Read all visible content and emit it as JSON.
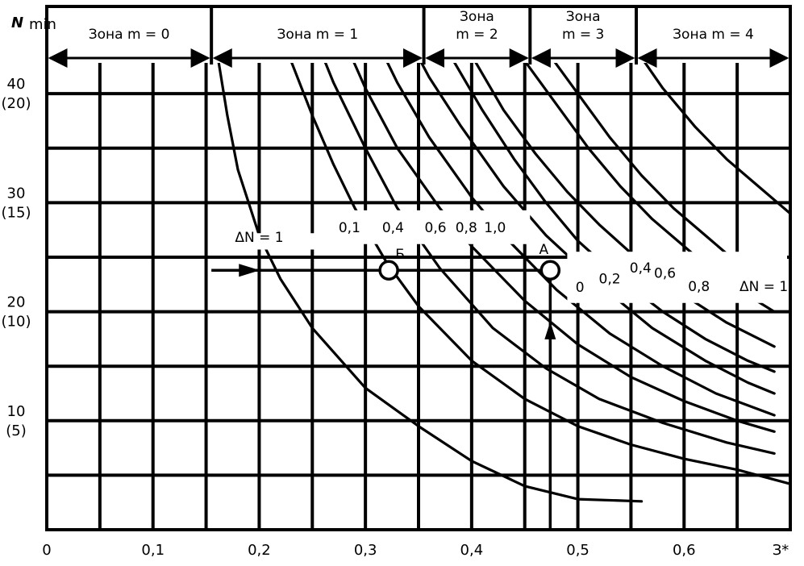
{
  "chart_data": {
    "type": "line",
    "xlim": [
      0,
      0.7
    ],
    "ylim": [
      0,
      48
    ],
    "grid": true,
    "x_ticks": [
      {
        "value": 0,
        "label": "0"
      },
      {
        "value": 0.1,
        "label": "0,1"
      },
      {
        "value": 0.2,
        "label": "0,2"
      },
      {
        "value": 0.3,
        "label": "0,3"
      },
      {
        "value": 0.4,
        "label": "0,4"
      },
      {
        "value": 0.5,
        "label": "0,5"
      },
      {
        "value": 0.6,
        "label": "0,6"
      },
      {
        "value": 0.7,
        "label": "З*"
      }
    ],
    "y_ticks": [
      {
        "value": 40,
        "label": "40",
        "sub": "(20)"
      },
      {
        "value": 30,
        "label": "30",
        "sub": "(15)"
      },
      {
        "value": 20,
        "label": "20",
        "sub": "(10)"
      },
      {
        "value": 10,
        "label": "10",
        "sub": "(5)"
      }
    ],
    "ylabel": "N",
    "ylabel_sub": "min",
    "zones": [
      {
        "label": "Зона  m  =  0",
        "line2": "",
        "x0": 0.0,
        "x1": 0.155
      },
      {
        "label": "Зона  m  =  1",
        "line2": "",
        "x0": 0.155,
        "x1": 0.355
      },
      {
        "label": "Зона",
        "line2": "m  =  2",
        "x0": 0.355,
        "x1": 0.455
      },
      {
        "label": "Зона",
        "line2": "m  =  3",
        "x0": 0.455,
        "x1": 0.555
      },
      {
        "label": "Зона  m  =  4",
        "line2": "",
        "x0": 0.555,
        "x1": 0.7
      }
    ],
    "series": [
      {
        "name": "ΔN = 1",
        "label_x": 0.2,
        "label_y": 26.4,
        "points": [
          [
            0.155,
            48
          ],
          [
            0.16,
            44
          ],
          [
            0.17,
            38
          ],
          [
            0.18,
            33
          ],
          [
            0.19,
            30
          ],
          [
            0.2,
            27
          ],
          [
            0.22,
            23
          ],
          [
            0.25,
            18.5
          ],
          [
            0.3,
            13
          ],
          [
            0.35,
            9.5
          ],
          [
            0.4,
            6.3
          ],
          [
            0.45,
            4
          ],
          [
            0.5,
            2.8
          ],
          [
            0.56,
            2.6
          ]
        ]
      },
      {
        "name": "0,1",
        "label_x": 0.285,
        "label_y": 27.3,
        "points": [
          [
            0.23,
            43
          ],
          [
            0.25,
            38
          ],
          [
            0.27,
            33.5
          ],
          [
            0.29,
            29.5
          ],
          [
            0.32,
            24.5
          ],
          [
            0.35,
            20.5
          ],
          [
            0.4,
            15.5
          ],
          [
            0.45,
            12
          ],
          [
            0.5,
            9.5
          ],
          [
            0.55,
            7.8
          ],
          [
            0.6,
            6.5
          ],
          [
            0.65,
            5.5
          ],
          [
            0.7,
            4.2
          ]
        ]
      },
      {
        "name": "0,4",
        "label_x": 0.326,
        "label_y": 27.3,
        "points": [
          [
            0.245,
            47
          ],
          [
            0.27,
            41
          ],
          [
            0.3,
            35
          ],
          [
            0.33,
            29.5
          ],
          [
            0.37,
            24
          ],
          [
            0.42,
            18.5
          ],
          [
            0.47,
            14.8
          ],
          [
            0.52,
            12
          ],
          [
            0.58,
            9.8
          ],
          [
            0.64,
            8
          ],
          [
            0.685,
            7
          ]
        ]
      },
      {
        "name": "0,6",
        "label_x": 0.366,
        "label_y": 27.3,
        "points": [
          [
            0.275,
            46
          ],
          [
            0.3,
            40.5
          ],
          [
            0.33,
            35
          ],
          [
            0.37,
            29.5
          ],
          [
            0.4,
            26
          ],
          [
            0.45,
            21
          ],
          [
            0.5,
            17
          ],
          [
            0.55,
            14
          ],
          [
            0.6,
            11.8
          ],
          [
            0.65,
            10
          ],
          [
            0.685,
            9
          ]
        ]
      },
      {
        "name": "0,8",
        "label_x": 0.395,
        "label_y": 27.3,
        "points": [
          [
            0.3,
            47
          ],
          [
            0.33,
            41
          ],
          [
            0.36,
            36
          ],
          [
            0.4,
            30.5
          ],
          [
            0.43,
            27
          ],
          [
            0.48,
            22
          ],
          [
            0.53,
            18
          ],
          [
            0.58,
            15
          ],
          [
            0.63,
            12.5
          ],
          [
            0.685,
            10.5
          ]
        ]
      },
      {
        "name": "1,0",
        "label_x": 0.422,
        "label_y": 27.3,
        "points": [
          [
            0.33,
            47
          ],
          [
            0.36,
            41.5
          ],
          [
            0.39,
            37
          ],
          [
            0.43,
            31.5
          ],
          [
            0.47,
            27
          ],
          [
            0.52,
            22.5
          ],
          [
            0.57,
            18.5
          ],
          [
            0.62,
            15.5
          ],
          [
            0.66,
            13.5
          ],
          [
            0.685,
            12.5
          ]
        ]
      },
      {
        "name": "0",
        "label_x": 0.502,
        "label_y": 21.8,
        "points": [
          [
            0.355,
            48
          ],
          [
            0.38,
            43.5
          ],
          [
            0.41,
            38.5
          ],
          [
            0.44,
            34
          ],
          [
            0.47,
            30
          ],
          [
            0.5,
            26.5
          ],
          [
            0.54,
            23
          ],
          [
            0.58,
            20
          ],
          [
            0.62,
            17.5
          ],
          [
            0.66,
            15.5
          ],
          [
            0.685,
            14.5
          ]
        ]
      },
      {
        "name": "0,2",
        "label_x": 0.53,
        "label_y": 22.6,
        "points": [
          [
            0.375,
            48
          ],
          [
            0.4,
            43.5
          ],
          [
            0.43,
            38.5
          ],
          [
            0.46,
            34.5
          ],
          [
            0.49,
            31
          ],
          [
            0.52,
            28
          ],
          [
            0.56,
            24.5
          ],
          [
            0.6,
            21.5
          ],
          [
            0.64,
            19
          ],
          [
            0.685,
            16.8
          ]
        ]
      },
      {
        "name": "0,4",
        "label_x": 0.559,
        "label_y": 23.6,
        "points": [
          [
            0.42,
            48
          ],
          [
            0.45,
            43
          ],
          [
            0.48,
            39
          ],
          [
            0.51,
            35
          ],
          [
            0.54,
            31.5
          ],
          [
            0.57,
            28.5
          ],
          [
            0.6,
            26
          ],
          [
            0.63,
            23.5
          ],
          [
            0.66,
            21.5
          ],
          [
            0.685,
            20
          ]
        ]
      },
      {
        "name": "0,6",
        "label_x": 0.582,
        "label_y": 23.1,
        "points": [
          [
            0.445,
            48
          ],
          [
            0.47,
            44
          ],
          [
            0.5,
            40
          ],
          [
            0.53,
            36
          ],
          [
            0.56,
            32.5
          ],
          [
            0.59,
            29.5
          ],
          [
            0.62,
            27
          ],
          [
            0.65,
            24.5
          ],
          [
            0.685,
            22
          ]
        ]
      },
      {
        "name": "0,8",
        "label_x": 0.614,
        "label_y": 21.9,
        "points": [
          [
            0.555,
            44
          ],
          [
            0.58,
            40.5
          ],
          [
            0.61,
            37
          ],
          [
            0.64,
            34
          ],
          [
            0.67,
            31.5
          ],
          [
            0.7,
            29
          ]
        ]
      }
    ],
    "extra_labels": [
      {
        "text": "ΔN = 1",
        "x": 0.675,
        "y": 21.9
      }
    ],
    "points": [
      {
        "name": "Б",
        "x": 0.322,
        "y": 23.8,
        "label_dx": 14,
        "label_dy": -14
      },
      {
        "name": "А",
        "x": 0.474,
        "y": 23.8,
        "label_dx": -8,
        "label_dy": -20
      }
    ],
    "reading_arrows": [
      {
        "x0": 0.155,
        "y0": 23.8,
        "x1": 0.322,
        "y1": 23.8,
        "head_at": 0.19
      },
      {
        "x0": 0.322,
        "y0": 23.8,
        "x1": 0.474,
        "y1": 23.8,
        "head_at": null
      },
      {
        "x0": 0.474,
        "y0": 0,
        "x1": 0.474,
        "y1": 23.8,
        "head_at": 18.5
      }
    ]
  }
}
